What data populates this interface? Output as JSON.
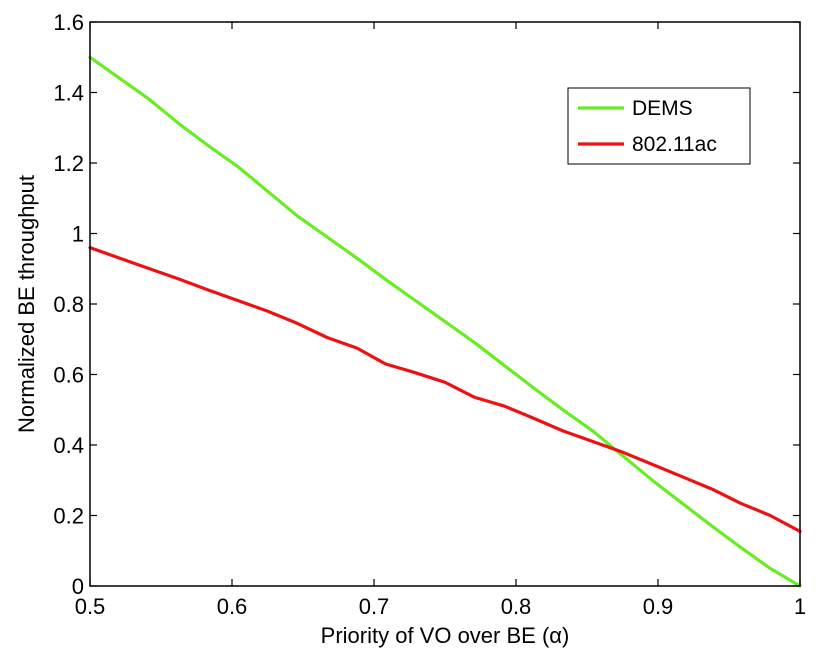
{
  "chart_data": {
    "type": "line",
    "title": "",
    "xlabel": "Priority of VO over BE (α)",
    "ylabel": "Normalized BE throughput",
    "xlim": [
      0.5,
      1
    ],
    "ylim": [
      0,
      1.6
    ],
    "grid": false,
    "legend_position": "top-right",
    "x_ticks": [
      0.5,
      0.6,
      0.7,
      0.8,
      0.9,
      1
    ],
    "x_tick_labels": [
      "0.5",
      "0.6",
      "0.7",
      "0.8",
      "0.9",
      "1"
    ],
    "y_ticks": [
      0,
      0.2,
      0.4,
      0.6,
      0.8,
      1,
      1.2,
      1.4,
      1.6
    ],
    "y_tick_labels": [
      "0",
      "0.2",
      "0.4",
      "0.6",
      "0.8",
      "1",
      "1.2",
      "1.4",
      "1.6"
    ],
    "series": [
      {
        "name": "DEMS",
        "color": "#66ee22",
        "x": [
          0.5,
          0.521,
          0.542,
          0.563,
          0.583,
          0.604,
          0.625,
          0.646,
          0.667,
          0.688,
          0.708,
          0.729,
          0.75,
          0.771,
          0.792,
          0.813,
          0.833,
          0.854,
          0.875,
          0.896,
          0.917,
          0.938,
          0.958,
          0.979,
          1.0
        ],
        "y": [
          1.5,
          1.44,
          1.38,
          1.31,
          1.25,
          1.19,
          1.12,
          1.05,
          0.99,
          0.93,
          0.87,
          0.81,
          0.75,
          0.69,
          0.625,
          0.56,
          0.5,
          0.44,
          0.37,
          0.3,
          0.235,
          0.17,
          0.11,
          0.05,
          0.0
        ]
      },
      {
        "name": "802.11ac",
        "color": "#ee1111",
        "x": [
          0.5,
          0.521,
          0.542,
          0.563,
          0.583,
          0.604,
          0.625,
          0.646,
          0.667,
          0.688,
          0.708,
          0.729,
          0.75,
          0.771,
          0.792,
          0.813,
          0.833,
          0.854,
          0.875,
          0.896,
          0.917,
          0.938,
          0.958,
          0.979,
          1.0
        ],
        "y": [
          0.96,
          0.93,
          0.9,
          0.87,
          0.84,
          0.81,
          0.78,
          0.745,
          0.705,
          0.675,
          0.63,
          0.605,
          0.578,
          0.535,
          0.51,
          0.475,
          0.44,
          0.41,
          0.38,
          0.345,
          0.31,
          0.275,
          0.235,
          0.2,
          0.155
        ]
      }
    ]
  }
}
